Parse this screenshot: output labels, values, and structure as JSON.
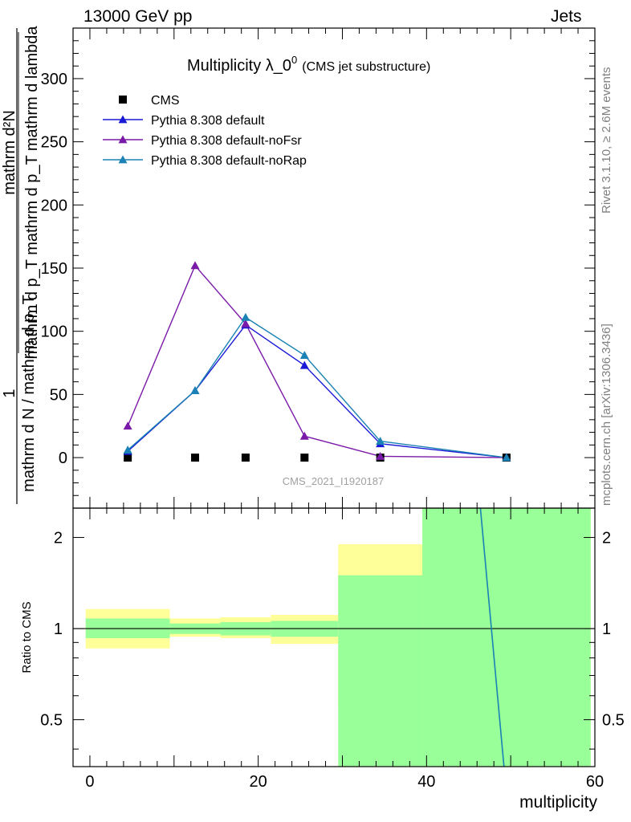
{
  "header": {
    "left": "13000 GeV pp",
    "right": "Jets"
  },
  "side_labels": {
    "rivet": "Rivet 3.1.10, ≥ 2.6M events",
    "mcplots": "mcplots.cern.ch [arXiv:1306.3436]"
  },
  "chart_data": [
    {
      "type": "line",
      "panel": "main",
      "title": "Multiplicity λ_0",
      "title_superscript": "0",
      "subtitle": "(CMS jet substructure)",
      "ylabel_top": "mathrm d²N",
      "ylabel_middle": "mathrm d p_T mathrm d p_T mathrm d lambda",
      "ylabel_prefix": "1",
      "ylabel_bottom": "mathrm d N / mathrm d p_T",
      "watermark": "CMS_2021_I1920187",
      "xlim": [
        -2,
        60
      ],
      "ylim": [
        -40,
        340
      ],
      "yticks": [
        0,
        50,
        100,
        150,
        200,
        250,
        300
      ],
      "legend_placement": "top-left",
      "series": [
        {
          "name": "CMS",
          "marker": "square",
          "color": "#000000",
          "x": [
            4.5,
            12.5,
            18.5,
            25.5,
            34.5,
            49.5
          ],
          "y": [
            0,
            0,
            0,
            0,
            0,
            0
          ]
        },
        {
          "name": "Pythia 8.308 default",
          "marker": "triangle",
          "color": "#1a1ad6",
          "x": [
            4.5,
            12.5,
            18.5,
            25.5,
            34.5,
            49.5
          ],
          "y": [
            5,
            53,
            105,
            73,
            11,
            0
          ]
        },
        {
          "name": "Pythia 8.308 default-noFsr",
          "marker": "triangle",
          "color": "#7a1aa8",
          "x": [
            4.5,
            12.5,
            18.5,
            25.5,
            34.5,
            49.5
          ],
          "y": [
            25,
            152,
            106,
            17,
            1,
            0
          ]
        },
        {
          "name": "Pythia 8.308 default-noRap",
          "marker": "triangle",
          "color": "#1a82b4",
          "x": [
            4.5,
            12.5,
            18.5,
            25.5,
            34.5,
            49.5
          ],
          "y": [
            6,
            53,
            111,
            81,
            13,
            0
          ]
        }
      ]
    },
    {
      "type": "area",
      "panel": "ratio",
      "ylabel": "Ratio to CMS",
      "xlabel": "multiplicity",
      "xlim": [
        -2,
        60
      ],
      "ylim": [
        0.35,
        2.5
      ],
      "log_y": true,
      "xticks": [
        0,
        20,
        40,
        60
      ],
      "yticks": [
        0.5,
        1,
        2
      ],
      "bins": [
        {
          "x0": -0.5,
          "x1": 9.5,
          "green": [
            0.93,
            1.08
          ],
          "yellow": [
            0.86,
            1.16
          ]
        },
        {
          "x0": 9.5,
          "x1": 15.5,
          "green": [
            0.96,
            1.04
          ],
          "yellow": [
            0.94,
            1.08
          ]
        },
        {
          "x0": 15.5,
          "x1": 21.5,
          "green": [
            0.95,
            1.05
          ],
          "yellow": [
            0.93,
            1.09
          ]
        },
        {
          "x0": 21.5,
          "x1": 29.5,
          "green": [
            0.94,
            1.06
          ],
          "yellow": [
            0.89,
            1.11
          ]
        },
        {
          "x0": 29.5,
          "x1": 39.5,
          "green": [
            0.35,
            1.5
          ],
          "yellow": [
            0.55,
            1.9
          ]
        },
        {
          "x0": 39.5,
          "x1": 59.5,
          "green": [
            0.35,
            2.5
          ],
          "yellow": [
            0.35,
            2.5
          ]
        }
      ],
      "reference_line": 1,
      "series": [
        {
          "name": "Pythia 8.308 default-noRap",
          "color": "#1a82b4",
          "x": [
            46.4,
            49.2
          ],
          "y": [
            2.5,
            0.35
          ]
        }
      ]
    }
  ]
}
